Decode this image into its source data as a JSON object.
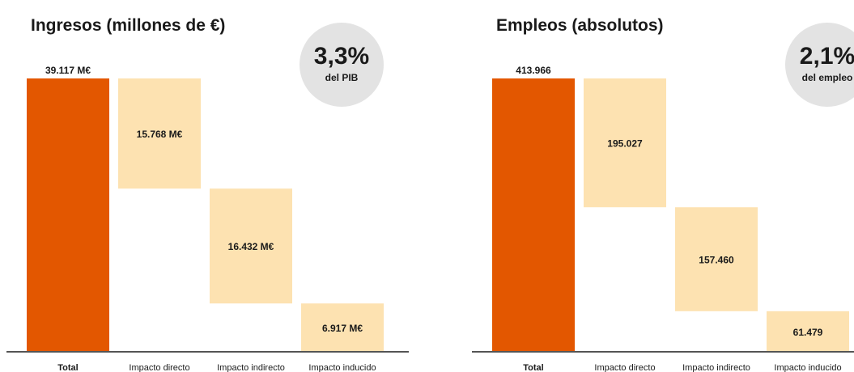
{
  "chart_data": [
    {
      "type": "bar",
      "title": "Ingresos (millones de €)",
      "highlight": {
        "value": "3,3%",
        "caption": "del PIB"
      },
      "categories": [
        "Total",
        "Impacto directo",
        "Impacto indirecto",
        "Impacto inducido"
      ],
      "values": [
        39117,
        15768,
        16432,
        6917
      ],
      "labels": [
        "39.117 M€",
        "15.768 M€",
        "16.432 M€",
        "6.917 M€"
      ],
      "colors": {
        "total": "#e35700",
        "component": "#fde2b1",
        "axis": "#555555",
        "text": "#1a1a1a"
      }
    },
    {
      "type": "bar",
      "title": "Empleos (absolutos)",
      "highlight": {
        "value": "2,1%",
        "caption": "del empleo"
      },
      "categories": [
        "Total",
        "Impacto directo",
        "Impacto indirecto",
        "Impacto inducido"
      ],
      "values": [
        413966,
        195027,
        157460,
        61479
      ],
      "labels": [
        "413.966",
        "195.027",
        "157.460",
        "61.479"
      ],
      "colors": {
        "total": "#e35700",
        "component": "#fde2b1",
        "axis": "#555555",
        "text": "#1a1a1a"
      }
    }
  ]
}
